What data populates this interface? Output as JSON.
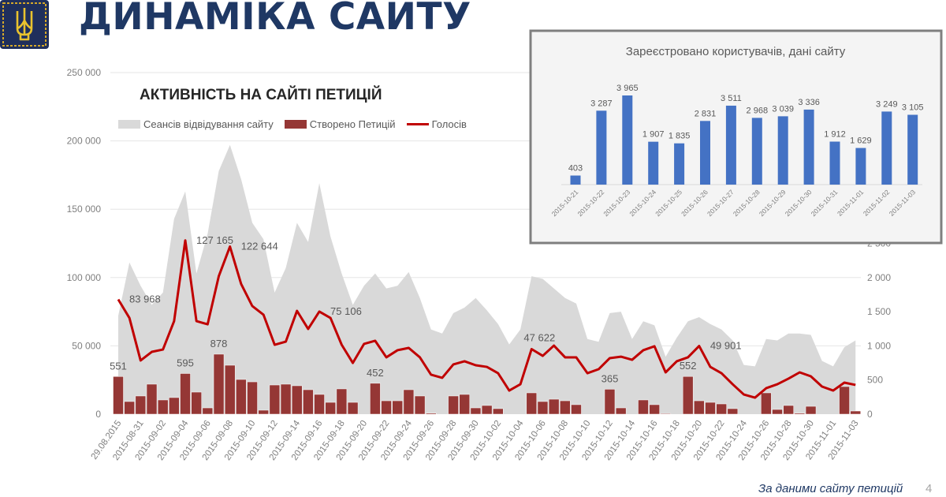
{
  "header": {
    "title": "ДИНАМІКА САЙТУ",
    "logo": "ukraine-trident-emblem"
  },
  "footer": {
    "source": "За даними сайту петицій",
    "page_number": "4"
  },
  "colors": {
    "title": "#1f3864",
    "sessions": "#d9d9d9",
    "petitions": "#953735",
    "votes": "#c00000",
    "inset_bars": "#4472c4"
  },
  "chart_data": [
    {
      "type": "combo",
      "title": "АКТИВНІСТЬ НА САЙТІ ПЕТИЦІЙ",
      "legend_position": "top-left",
      "grid": true,
      "left_axis": {
        "ylim": [
          0,
          250000
        ],
        "ticks": [
          "0",
          "50 000",
          "100 000",
          "150 000",
          "200 000",
          "250 000"
        ]
      },
      "right_axis": {
        "ylim": [
          0,
          5000
        ],
        "ticks": [
          "0",
          "500",
          "1 000",
          "1 500",
          "2 000",
          "2 500"
        ]
      },
      "categories": [
        "29.08.2015",
        "2015-08-30",
        "2015-08-31",
        "2015-09-01",
        "2015-09-02",
        "2015-09-03",
        "2015-09-04",
        "2015-09-05",
        "2015-09-06",
        "2015-09-07",
        "2015-09-08",
        "2015-09-09",
        "2015-09-10",
        "2015-09-11",
        "2015-09-12",
        "2015-09-13",
        "2015-09-14",
        "2015-09-15",
        "2015-09-16",
        "2015-09-17",
        "2015-09-18",
        "2015-09-19",
        "2015-09-20",
        "2015-09-21",
        "2015-09-22",
        "2015-09-23",
        "2015-09-24",
        "2015-09-25",
        "2015-09-26",
        "2015-09-27",
        "2015-09-28",
        "2015-09-29",
        "2015-09-30",
        "2015-10-01",
        "2015-10-02",
        "2015-10-03",
        "2015-10-04",
        "2015-10-05",
        "2015-10-06",
        "2015-10-07",
        "2015-10-08",
        "2015-10-09",
        "2015-10-10",
        "2015-10-11",
        "2015-10-12",
        "2015-10-13",
        "2015-10-14",
        "2015-10-15",
        "2015-10-16",
        "2015-10-17",
        "2015-10-18",
        "2015-10-19",
        "2015-10-20",
        "2015-10-21",
        "2015-10-22",
        "2015-10-23",
        "2015-10-24",
        "2015-10-25",
        "2015-10-26",
        "2015-10-27",
        "2015-10-28",
        "2015-10-29",
        "2015-10-30",
        "2015-10-31",
        "2015-11-01",
        "2015-11-02",
        "2015-11-03"
      ],
      "tick_label_every": 2,
      "series": [
        {
          "name": "Сеансів відвідування сайту",
          "type": "area",
          "axis": "left",
          "values": [
            72000,
            111000,
            94000,
            80000,
            89000,
            143000,
            163000,
            103000,
            132000,
            178000,
            197000,
            172000,
            140000,
            128000,
            89000,
            107000,
            140000,
            126000,
            169000,
            130000,
            103000,
            80000,
            94000,
            103000,
            92000,
            94000,
            104000,
            85000,
            62000,
            59000,
            74000,
            78000,
            85000,
            76000,
            66000,
            51000,
            62000,
            101000,
            99000,
            92000,
            85000,
            81000,
            55000,
            53000,
            74000,
            75000,
            55000,
            68000,
            65000,
            42000,
            56000,
            68000,
            71000,
            66000,
            62000,
            54000,
            36000,
            35000,
            55000,
            54000,
            59000,
            59000,
            58000,
            39000,
            35000,
            49000,
            54000
          ]
        },
        {
          "name": "Створено Петицій",
          "type": "bar",
          "axis": "right",
          "values": [
            551,
            185,
            266,
            439,
            208,
            243,
            595,
            323,
            92,
            878,
            716,
            508,
            473,
            58,
            427,
            439,
            416,
            358,
            289,
            173,
            370,
            173,
            0,
            452,
            196,
            196,
            358,
            266,
            15,
            0,
            266,
            289,
            92,
            127,
            81,
            0,
            0,
            312,
            185,
            219,
            196,
            139,
            0,
            0,
            365,
            92,
            0,
            208,
            139,
            10,
            0,
            552,
            196,
            173,
            150,
            81,
            0,
            0,
            312,
            69,
            127,
            15,
            115,
            0,
            0,
            404,
            46
          ]
        },
        {
          "name": "Голосів",
          "type": "line",
          "axis": "left",
          "values": [
            83968,
            70400,
            39300,
            45600,
            47300,
            68100,
            127165,
            68100,
            65800,
            101000,
            122644,
            95300,
            79100,
            72800,
            50800,
            53100,
            75600,
            62400,
            75106,
            70400,
            50800,
            37500,
            51400,
            53700,
            41600,
            46800,
            48500,
            41600,
            28900,
            26600,
            36400,
            38700,
            35800,
            34600,
            30000,
            17300,
            21900,
            47622,
            42700,
            50200,
            41600,
            41600,
            30000,
            32900,
            41000,
            42100,
            39800,
            46800,
            49700,
            30600,
            38700,
            41600,
            49901,
            34600,
            30000,
            21900,
            14400,
            12100,
            19000,
            21900,
            26000,
            30600,
            27700,
            20200,
            17300,
            23100,
            21400
          ]
        }
      ],
      "annotations": [
        {
          "series": 2,
          "index": 0,
          "label": "83 968"
        },
        {
          "series": 2,
          "index": 6,
          "label": "127 165"
        },
        {
          "series": 2,
          "index": 10,
          "label": "122 644"
        },
        {
          "series": 2,
          "index": 18,
          "label": "75 106"
        },
        {
          "series": 2,
          "index": 37,
          "label": "47 622",
          "position": "above"
        },
        {
          "series": 2,
          "index": 52,
          "label": "49 901"
        },
        {
          "series": 1,
          "index": 0,
          "label": "551"
        },
        {
          "series": 1,
          "index": 6,
          "label": "595"
        },
        {
          "series": 1,
          "index": 9,
          "label": "878"
        },
        {
          "series": 1,
          "index": 23,
          "label": "452"
        },
        {
          "series": 1,
          "index": 44,
          "label": "365"
        },
        {
          "series": 1,
          "index": 51,
          "label": "552"
        }
      ]
    },
    {
      "type": "bar",
      "title": "Зареєстровано користувачів, дані сайту",
      "categories": [
        "2015-10-21",
        "2015-10-22",
        "2015-10-23",
        "2015-10-24",
        "2015-10-25",
        "2015-10-26",
        "2015-10-27",
        "2015-10-28",
        "2015-10-29",
        "2015-10-30",
        "2015-10-31",
        "2015-11-01",
        "2015-11-02",
        "2015-11-03"
      ],
      "values": [
        403,
        3287,
        3965,
        1907,
        1835,
        2831,
        3511,
        2968,
        3039,
        3336,
        1912,
        1629,
        3249,
        3105
      ],
      "labels": [
        "403",
        "3 287",
        "3 965",
        "1 907",
        "1 835",
        "2 831",
        "3 511",
        "2 968",
        "3 039",
        "3 336",
        "1 912",
        "1 629",
        "3 249",
        "3 105"
      ],
      "grid": false
    }
  ]
}
